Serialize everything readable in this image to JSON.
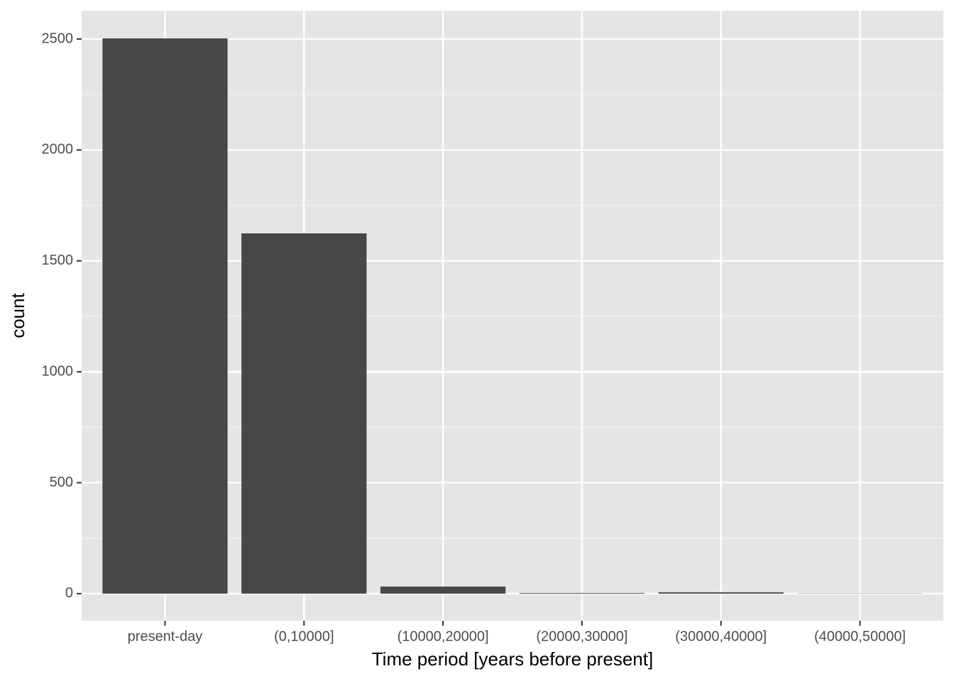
{
  "chart_data": {
    "type": "bar",
    "x_label": "Time period [years before present]",
    "y_label": "count",
    "categories": [
      "present-day",
      "(0,10000]",
      "(10000,20000]",
      "(20000,30000]",
      "(30000,40000]",
      "(40000,50000]"
    ],
    "values": [
      2503,
      1624,
      32,
      3,
      6,
      1
    ],
    "color": "#474747",
    "ylim": [
      -122,
      2628
    ],
    "yticks": [
      0,
      500,
      1000,
      1500,
      2000,
      2500
    ],
    "grid": true
  }
}
